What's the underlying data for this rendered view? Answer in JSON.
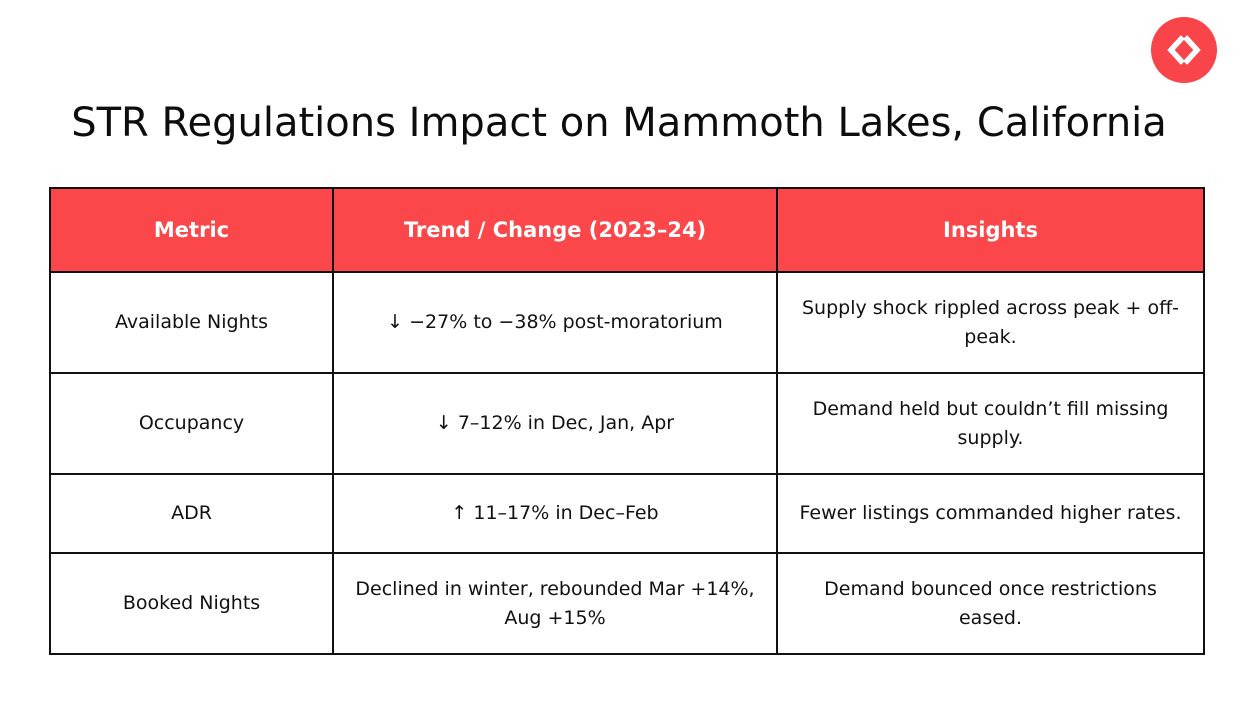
{
  "logo": {
    "icon": "code-brackets-icon",
    "color": "#f94449"
  },
  "title": "STR Regulations Impact on Mammoth Lakes, California",
  "table": {
    "header_color": "#fb464a",
    "columns": [
      "Metric",
      "Trend / Change (2023–24)",
      "Insights"
    ],
    "rows": [
      {
        "metric": "Available Nights",
        "trend": "↓ −27% to −38% post-moratorium",
        "insight": "Supply shock rippled across peak + off-peak."
      },
      {
        "metric": "Occupancy",
        "trend": "↓ 7–12% in Dec, Jan, Apr",
        "insight": "Demand held but couldn’t fill missing supply."
      },
      {
        "metric": "ADR",
        "trend": "↑ 11–17% in Dec–Feb",
        "insight": "Fewer listings commanded higher rates."
      },
      {
        "metric": "Booked Nights",
        "trend": "Declined in winter, rebounded Mar +14%, Aug +15%",
        "insight": "Demand bounced once restrictions eased."
      }
    ]
  }
}
